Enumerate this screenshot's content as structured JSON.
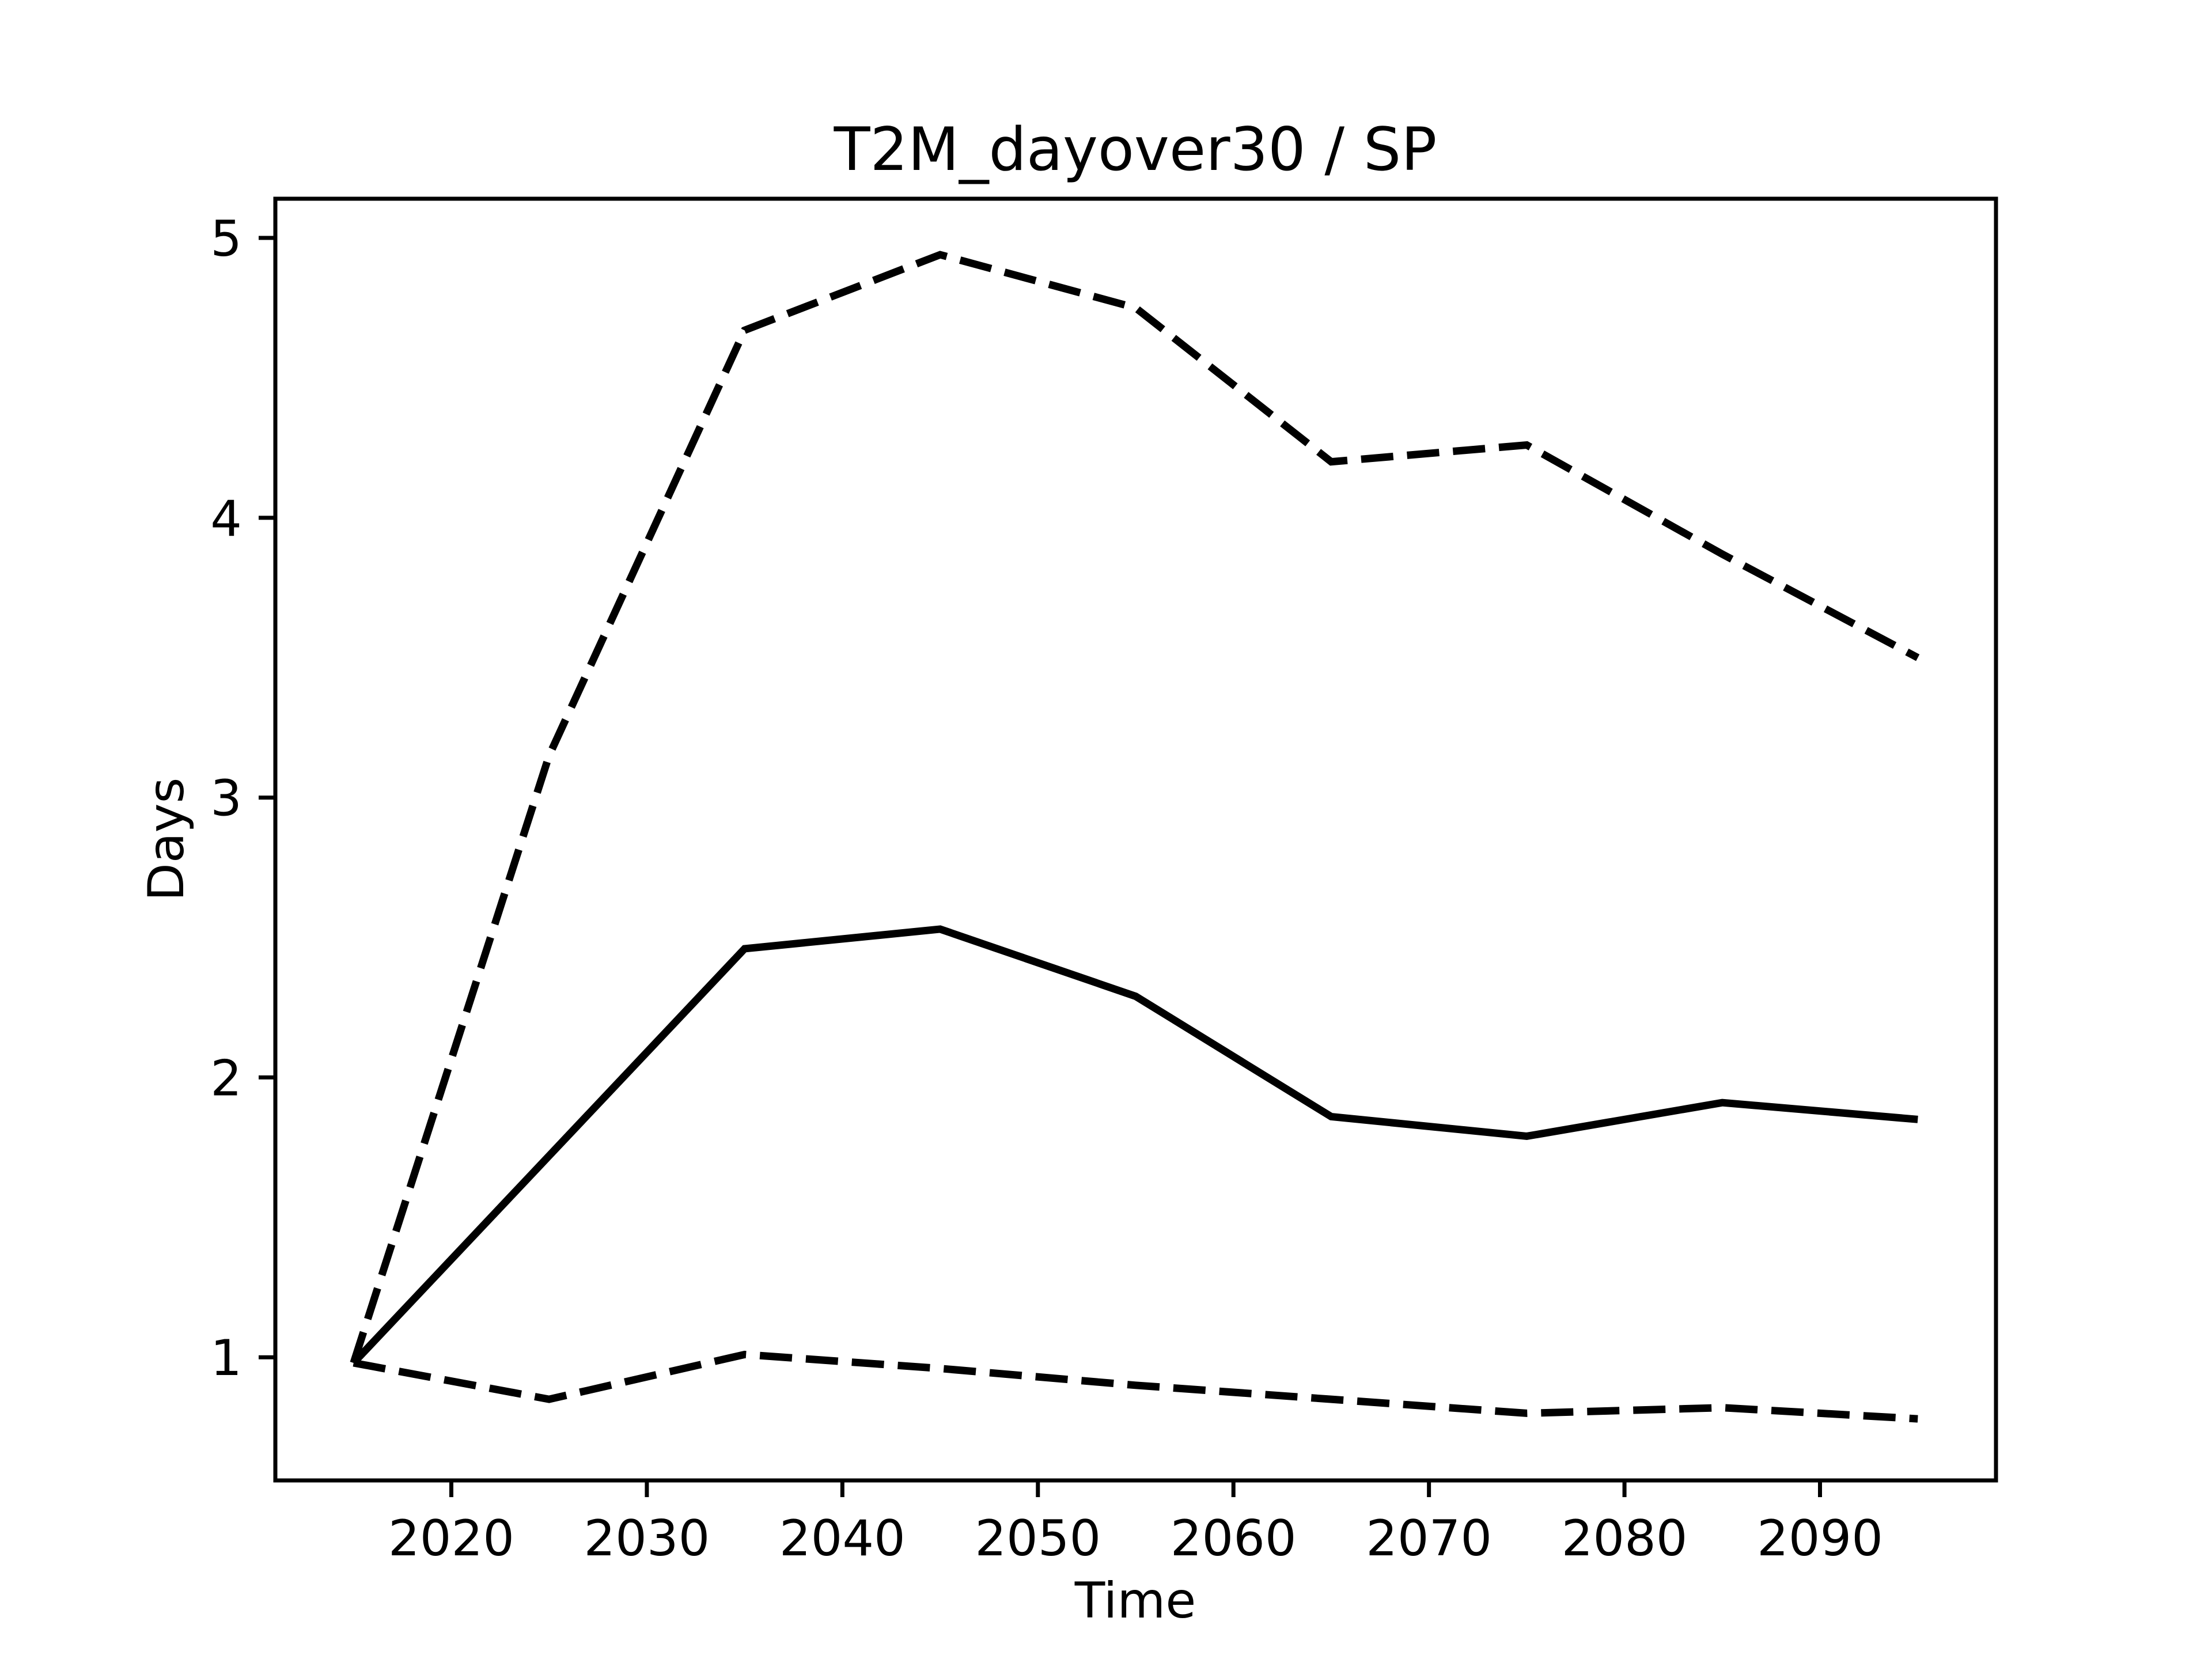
{
  "chart_data": {
    "type": "line",
    "title": "T2M_dayover30 / SP",
    "xlabel": "Time",
    "ylabel": "Days",
    "x": [
      2015,
      2025,
      2035,
      2045,
      2055,
      2065,
      2075,
      2085,
      2095
    ],
    "series": [
      {
        "name": "upper-dashed",
        "style": "dashed",
        "values": [
          0.98,
          3.15,
          4.67,
          4.94,
          4.75,
          4.2,
          4.26,
          3.87,
          3.5
        ]
      },
      {
        "name": "mean-solid",
        "style": "solid",
        "values": [
          0.98,
          1.72,
          2.46,
          2.53,
          2.29,
          1.86,
          1.79,
          1.91,
          1.85
        ]
      },
      {
        "name": "lower-dashed",
        "style": "dashed",
        "values": [
          0.98,
          0.85,
          1.01,
          0.96,
          0.9,
          0.85,
          0.8,
          0.82,
          0.78
        ]
      }
    ],
    "xticks": [
      2020,
      2030,
      2040,
      2050,
      2060,
      2070,
      2080,
      2090
    ],
    "yticks": [
      1,
      2,
      3,
      4,
      5
    ],
    "xlim": [
      2011,
      2099
    ],
    "ylim": [
      0.56,
      5.14
    ],
    "grid": false,
    "legend": "none",
    "line_color": "#000000",
    "background_color": "#ffffff"
  }
}
